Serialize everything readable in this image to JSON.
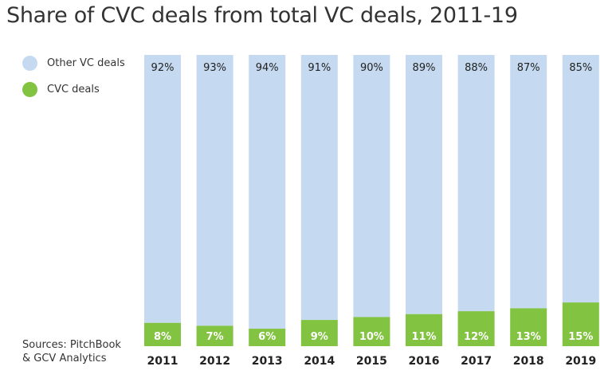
{
  "chart_data": {
    "type": "bar",
    "stacked": true,
    "title": "Share of CVC deals from total VC deals, 2011-19",
    "categories": [
      "2011",
      "2012",
      "2013",
      "2014",
      "2015",
      "2016",
      "2017",
      "2018",
      "2019"
    ],
    "series": [
      {
        "name": "CVC deals",
        "color": "#82c341",
        "values": [
          8,
          7,
          6,
          9,
          10,
          11,
          12,
          13,
          15
        ]
      },
      {
        "name": "Other VC deals",
        "color": "#c5daf0",
        "values": [
          92,
          93,
          94,
          91,
          90,
          89,
          88,
          87,
          85
        ]
      }
    ],
    "ylim": [
      0,
      100
    ],
    "unit": "%",
    "legend_position": "top-left"
  },
  "source": [
    "Sources: PitchBook",
    "& GCV Analytics"
  ]
}
